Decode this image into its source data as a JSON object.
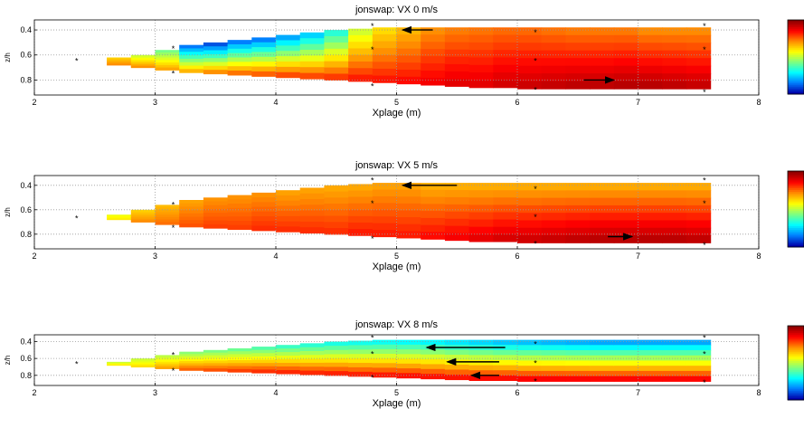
{
  "chart_data": [
    {
      "type": "heatmap",
      "title": "jonswap:  VX 0 m/s",
      "xlabel": "Xplage (m)",
      "ylabel": "z/h",
      "xlim": [
        2,
        8
      ],
      "ylim": [
        0.92,
        0.32
      ],
      "xticks": [
        "2",
        "3",
        "4",
        "5",
        "6",
        "7",
        "8"
      ],
      "yticks": [
        "0.4",
        "0.6",
        "0.8"
      ],
      "yvalues": [
        0.4,
        0.6,
        0.8
      ],
      "grid": true,
      "colorbar": {
        "label": "",
        "colors": [
          "#8b0000",
          "#ff0000",
          "#ff8c00",
          "#ffff00",
          "#7fff7f",
          "#00ffff",
          "#0080ff",
          "#0000aa"
        ]
      },
      "arrows": [
        {
          "x_from": 5.3,
          "x_to": 5.05,
          "z": 0.4
        },
        {
          "x_from": 6.55,
          "x_to": 6.8,
          "z": 0.8
        }
      ],
      "markers": [
        {
          "x": 2.35,
          "z": 0.65
        },
        {
          "x": 3.15,
          "z": 0.55
        },
        {
          "x": 3.15,
          "z": 0.75
        },
        {
          "x": 4.8,
          "z": 0.37
        },
        {
          "x": 4.8,
          "z": 0.56
        },
        {
          "x": 4.8,
          "z": 0.85
        },
        {
          "x": 6.15,
          "z": 0.42
        },
        {
          "x": 6.15,
          "z": 0.65
        },
        {
          "x": 6.15,
          "z": 0.88
        },
        {
          "x": 7.55,
          "z": 0.37
        },
        {
          "x": 7.55,
          "z": 0.56
        },
        {
          "x": 7.55,
          "z": 0.9
        }
      ],
      "field": {
        "x": [
          2.6,
          2.8,
          3.0,
          3.2,
          3.4,
          3.6,
          3.8,
          4.0,
          4.2,
          4.4,
          4.6,
          4.8,
          5.0,
          5.2,
          5.4,
          5.6,
          5.8,
          6.0,
          6.2,
          6.4,
          6.6,
          6.8,
          7.0,
          7.2,
          7.4
        ],
        "z_top": [
          0.62,
          0.6,
          0.56,
          0.52,
          0.5,
          0.48,
          0.46,
          0.44,
          0.42,
          0.4,
          0.39,
          0.38,
          0.38,
          0.38,
          0.38,
          0.38,
          0.38,
          0.38,
          0.38,
          0.38,
          0.38,
          0.38,
          0.38,
          0.38,
          0.38
        ],
        "z_bot": [
          0.68,
          0.7,
          0.72,
          0.74,
          0.75,
          0.76,
          0.77,
          0.78,
          0.79,
          0.8,
          0.81,
          0.82,
          0.83,
          0.84,
          0.85,
          0.86,
          0.86,
          0.87,
          0.87,
          0.87,
          0.87,
          0.87,
          0.87,
          0.87,
          0.87
        ],
        "top_level": [
          0.62,
          0.5,
          0.4,
          0.1,
          0.05,
          0.1,
          0.1,
          0.15,
          0.2,
          0.3,
          0.5,
          0.6,
          0.65,
          0.7,
          0.72,
          0.73,
          0.74,
          0.74,
          0.73,
          0.72,
          0.72,
          0.72,
          0.7,
          0.7,
          0.7
        ],
        "bottom_level": [
          0.72,
          0.72,
          0.7,
          0.7,
          0.75,
          0.78,
          0.8,
          0.82,
          0.82,
          0.83,
          0.85,
          0.85,
          0.86,
          0.88,
          0.9,
          0.9,
          0.92,
          0.93,
          0.94,
          0.95,
          0.95,
          0.96,
          0.96,
          0.95,
          0.94
        ]
      }
    },
    {
      "type": "heatmap",
      "title": "jonswap:  VX 5 m/s",
      "xlabel": "Xplage (m)",
      "ylabel": "z/h",
      "xlim": [
        2,
        8
      ],
      "ylim": [
        0.92,
        0.32
      ],
      "xticks": [
        "2",
        "3",
        "4",
        "5",
        "6",
        "7",
        "8"
      ],
      "yticks": [
        "0.4",
        "0.6",
        "0.8"
      ],
      "yvalues": [
        0.4,
        0.6,
        0.8
      ],
      "grid": true,
      "colorbar": {
        "label": "",
        "colors": [
          "#8b0000",
          "#ff0000",
          "#ff8c00",
          "#ffff00",
          "#7fff7f",
          "#00ffff",
          "#0080ff",
          "#0000aa"
        ]
      },
      "arrows": [
        {
          "x_from": 5.5,
          "x_to": 5.05,
          "z": 0.4
        },
        {
          "x_from": 6.75,
          "x_to": 6.95,
          "z": 0.82
        }
      ],
      "markers": [
        {
          "x": 2.35,
          "z": 0.67
        },
        {
          "x": 3.15,
          "z": 0.56
        },
        {
          "x": 3.15,
          "z": 0.75
        },
        {
          "x": 4.8,
          "z": 0.36
        },
        {
          "x": 4.8,
          "z": 0.55
        },
        {
          "x": 4.8,
          "z": 0.84
        },
        {
          "x": 6.15,
          "z": 0.43
        },
        {
          "x": 6.15,
          "z": 0.66
        },
        {
          "x": 6.15,
          "z": 0.88
        },
        {
          "x": 7.55,
          "z": 0.36
        },
        {
          "x": 7.55,
          "z": 0.55
        },
        {
          "x": 7.55,
          "z": 0.89
        }
      ],
      "field": {
        "x": [
          2.6,
          2.8,
          3.0,
          3.2,
          3.4,
          3.6,
          3.8,
          4.0,
          4.2,
          4.4,
          4.6,
          4.8,
          5.0,
          5.2,
          5.4,
          5.6,
          5.8,
          6.0,
          6.2,
          6.4,
          6.6,
          6.8,
          7.0,
          7.2,
          7.4
        ],
        "z_top": [
          0.64,
          0.6,
          0.56,
          0.52,
          0.5,
          0.48,
          0.46,
          0.44,
          0.42,
          0.4,
          0.39,
          0.38,
          0.38,
          0.38,
          0.38,
          0.38,
          0.38,
          0.38,
          0.38,
          0.38,
          0.38,
          0.38,
          0.38,
          0.38,
          0.38
        ],
        "z_bot": [
          0.68,
          0.7,
          0.72,
          0.74,
          0.75,
          0.76,
          0.77,
          0.78,
          0.79,
          0.8,
          0.81,
          0.82,
          0.83,
          0.84,
          0.85,
          0.86,
          0.86,
          0.87,
          0.87,
          0.87,
          0.87,
          0.87,
          0.87,
          0.87,
          0.87
        ],
        "top_level": [
          0.55,
          0.62,
          0.65,
          0.68,
          0.7,
          0.7,
          0.7,
          0.68,
          0.68,
          0.67,
          0.67,
          0.68,
          0.68,
          0.66,
          0.66,
          0.66,
          0.66,
          0.66,
          0.66,
          0.66,
          0.66,
          0.66,
          0.66,
          0.66,
          0.66
        ],
        "bottom_level": [
          0.6,
          0.72,
          0.75,
          0.78,
          0.8,
          0.8,
          0.82,
          0.82,
          0.82,
          0.82,
          0.84,
          0.84,
          0.84,
          0.86,
          0.88,
          0.9,
          0.92,
          0.93,
          0.94,
          0.95,
          0.96,
          0.96,
          0.96,
          0.96,
          0.95
        ]
      }
    },
    {
      "type": "heatmap",
      "title": "jonswap:  VX 8 m/s",
      "xlabel": "Xplage (m)",
      "ylabel": "z/h",
      "xlim": [
        2,
        8
      ],
      "ylim": [
        0.92,
        0.32
      ],
      "xticks": [
        "2",
        "3",
        "4",
        "5",
        "6",
        "7",
        "8"
      ],
      "yticks": [
        "0.4",
        "0.6",
        "0.8"
      ],
      "yvalues": [
        0.4,
        0.6,
        0.8
      ],
      "grid": true,
      "colorbar": {
        "label": "",
        "colors": [
          "#8b0000",
          "#ff0000",
          "#ff8c00",
          "#ffff00",
          "#7fff7f",
          "#00ffff",
          "#0080ff",
          "#0000aa"
        ]
      },
      "arrows": [
        {
          "x_from": 5.9,
          "x_to": 5.25,
          "z": 0.47
        },
        {
          "x_from": 5.85,
          "x_to": 5.42,
          "z": 0.64
        },
        {
          "x_from": 5.85,
          "x_to": 5.62,
          "z": 0.8
        }
      ],
      "markers": [
        {
          "x": 2.35,
          "z": 0.67
        },
        {
          "x": 3.15,
          "z": 0.56
        },
        {
          "x": 3.15,
          "z": 0.75
        },
        {
          "x": 4.8,
          "z": 0.36
        },
        {
          "x": 4.8,
          "z": 0.55
        },
        {
          "x": 4.8,
          "z": 0.83
        },
        {
          "x": 6.15,
          "z": 0.43
        },
        {
          "x": 6.15,
          "z": 0.66
        },
        {
          "x": 6.15,
          "z": 0.87
        },
        {
          "x": 7.55,
          "z": 0.36
        },
        {
          "x": 7.55,
          "z": 0.55
        },
        {
          "x": 7.55,
          "z": 0.89
        }
      ],
      "field": {
        "x": [
          2.6,
          2.8,
          3.0,
          3.2,
          3.4,
          3.6,
          3.8,
          4.0,
          4.2,
          4.4,
          4.6,
          4.8,
          5.0,
          5.2,
          5.4,
          5.6,
          5.8,
          6.0,
          6.2,
          6.4,
          6.6,
          6.8,
          7.0,
          7.2,
          7.4
        ],
        "z_top": [
          0.64,
          0.6,
          0.56,
          0.52,
          0.5,
          0.48,
          0.46,
          0.44,
          0.42,
          0.4,
          0.39,
          0.38,
          0.38,
          0.38,
          0.38,
          0.38,
          0.38,
          0.38,
          0.38,
          0.38,
          0.38,
          0.38,
          0.38,
          0.38,
          0.38
        ],
        "z_bot": [
          0.68,
          0.7,
          0.72,
          0.74,
          0.75,
          0.76,
          0.77,
          0.78,
          0.79,
          0.8,
          0.81,
          0.82,
          0.83,
          0.84,
          0.85,
          0.86,
          0.86,
          0.87,
          0.87,
          0.87,
          0.87,
          0.87,
          0.87,
          0.87,
          0.87
        ],
        "top_level": [
          0.5,
          0.5,
          0.48,
          0.42,
          0.4,
          0.38,
          0.35,
          0.32,
          0.3,
          0.28,
          0.27,
          0.26,
          0.25,
          0.24,
          0.22,
          0.2,
          0.18,
          0.17,
          0.16,
          0.15,
          0.14,
          0.14,
          0.14,
          0.14,
          0.14
        ],
        "bottom_level": [
          0.6,
          0.62,
          0.7,
          0.78,
          0.8,
          0.82,
          0.84,
          0.85,
          0.85,
          0.86,
          0.86,
          0.87,
          0.88,
          0.88,
          0.88,
          0.89,
          0.89,
          0.9,
          0.9,
          0.9,
          0.9,
          0.9,
          0.9,
          0.9,
          0.9
        ]
      }
    }
  ]
}
